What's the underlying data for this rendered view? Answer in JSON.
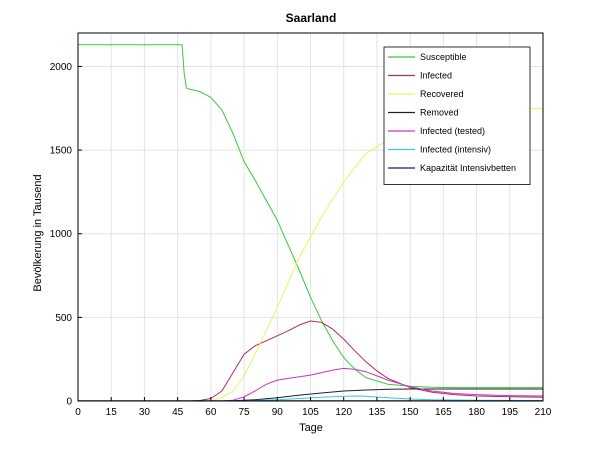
{
  "chart_data": {
    "type": "line",
    "title": "Saarland",
    "xlabel": "Tage",
    "ylabel": "Bevölkerung in Tausend",
    "xlim": [
      0,
      210
    ],
    "ylim": [
      0,
      2200
    ],
    "xticks": [
      0,
      15,
      30,
      45,
      60,
      75,
      90,
      105,
      120,
      135,
      150,
      165,
      180,
      195,
      210
    ],
    "yticks": [
      0,
      500,
      1000,
      1500,
      2000
    ],
    "grid": true,
    "legend_position": "top-right",
    "series": [
      {
        "name": "Susceptible",
        "color": "#3cc83c",
        "x": [
          0,
          47,
          48,
          49,
          50,
          55,
          60,
          65,
          70,
          75,
          80,
          90,
          100,
          105,
          110,
          115,
          120,
          125,
          130,
          140,
          150,
          160,
          170,
          180,
          195,
          210
        ],
        "y": [
          2130,
          2130,
          1950,
          1870,
          1865,
          1850,
          1815,
          1740,
          1600,
          1430,
          1320,
          1080,
          780,
          620,
          480,
          360,
          260,
          190,
          140,
          100,
          88,
          82,
          80,
          80,
          80,
          80
        ]
      },
      {
        "name": "Infected",
        "color": "#a83255",
        "x": [
          0,
          50,
          55,
          60,
          65,
          70,
          75,
          80,
          85,
          90,
          95,
          100,
          105,
          110,
          115,
          120,
          125,
          130,
          135,
          140,
          150,
          160,
          170,
          180,
          195,
          210
        ],
        "y": [
          0,
          0,
          3,
          15,
          60,
          170,
          280,
          330,
          360,
          390,
          420,
          455,
          478,
          470,
          430,
          370,
          300,
          235,
          180,
          135,
          80,
          52,
          38,
          30,
          25,
          22
        ]
      },
      {
        "name": "Recovered",
        "color": "#f0f060",
        "x": [
          0,
          60,
          65,
          70,
          75,
          80,
          90,
          100,
          110,
          120,
          130,
          140,
          150,
          160,
          170,
          180,
          190,
          200,
          210
        ],
        "y": [
          0,
          0,
          20,
          60,
          150,
          280,
          560,
          860,
          1100,
          1310,
          1480,
          1560,
          1630,
          1670,
          1700,
          1720,
          1735,
          1745,
          1750
        ]
      },
      {
        "name": "Removed",
        "color": "#222222",
        "x": [
          0,
          65,
          70,
          80,
          90,
          100,
          110,
          120,
          130,
          140,
          150,
          160,
          180,
          210
        ],
        "y": [
          0,
          0,
          2,
          8,
          20,
          35,
          48,
          60,
          66,
          70,
          72,
          72,
          72,
          72
        ]
      },
      {
        "name": "Infected (tested)",
        "color": "#cc33cc",
        "x": [
          0,
          65,
          70,
          75,
          80,
          85,
          90,
          95,
          100,
          105,
          110,
          115,
          120,
          125,
          130,
          135,
          140,
          150,
          160,
          170,
          180,
          195,
          210
        ],
        "y": [
          0,
          0,
          5,
          25,
          60,
          100,
          125,
          135,
          145,
          155,
          170,
          185,
          195,
          190,
          175,
          150,
          125,
          85,
          60,
          45,
          38,
          32,
          30
        ]
      },
      {
        "name": "Infected (intensiv)",
        "color": "#40c8d8",
        "x": [
          0,
          70,
          80,
          90,
          100,
          110,
          120,
          125,
          130,
          140,
          150,
          160,
          180,
          210
        ],
        "y": [
          0,
          0,
          3,
          8,
          15,
          22,
          28,
          30,
          28,
          20,
          12,
          7,
          4,
          3
        ]
      },
      {
        "name": "Kapazität Intensivbetten",
        "color": "#1a1a6e",
        "x": [
          0,
          210
        ],
        "y": [
          1,
          1
        ]
      }
    ]
  }
}
